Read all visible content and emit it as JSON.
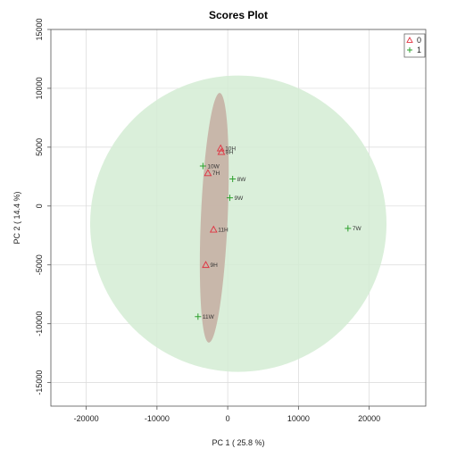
{
  "chart_data": {
    "type": "scatter",
    "title": "Scores Plot",
    "xlabel": "PC 1 ( 25.8 %)",
    "ylabel": "PC 2 ( 14.4 %)",
    "xlim": [
      -25000,
      28000
    ],
    "ylim": [
      -17000,
      15000
    ],
    "xticks": [
      -20000,
      -10000,
      0,
      10000,
      20000
    ],
    "yticks": [
      -15000,
      -10000,
      -5000,
      0,
      5000,
      10000,
      15000
    ],
    "grid": true,
    "legend_position": "top-right",
    "series": [
      {
        "name": "0",
        "marker": "triangle",
        "color": "#e0303f",
        "points": [
          {
            "label": "10H",
            "x": -1000,
            "y": 4900
          },
          {
            "label": "8H",
            "x": -900,
            "y": 4600
          },
          {
            "label": "7H",
            "x": -2800,
            "y": 2800
          },
          {
            "label": "11H",
            "x": -2000,
            "y": -2000
          },
          {
            "label": "9H",
            "x": -3100,
            "y": -5000
          }
        ]
      },
      {
        "name": "1",
        "marker": "plus",
        "color": "#2ca02c",
        "points": [
          {
            "label": "10W",
            "x": -3500,
            "y": 3400
          },
          {
            "label": "8W",
            "x": 700,
            "y": 2300
          },
          {
            "label": "9W",
            "x": 300,
            "y": 700
          },
          {
            "label": "7W",
            "x": 17000,
            "y": -1900
          },
          {
            "label": "11W",
            "x": -4200,
            "y": -9400
          }
        ]
      }
    ],
    "ellipses": [
      {
        "group": "1",
        "center": [
          1500,
          -1500
        ],
        "color": "#d4ecd4"
      },
      {
        "group": "0",
        "center": [
          -1900,
          -1000
        ],
        "color": "#c2a49a"
      }
    ]
  }
}
